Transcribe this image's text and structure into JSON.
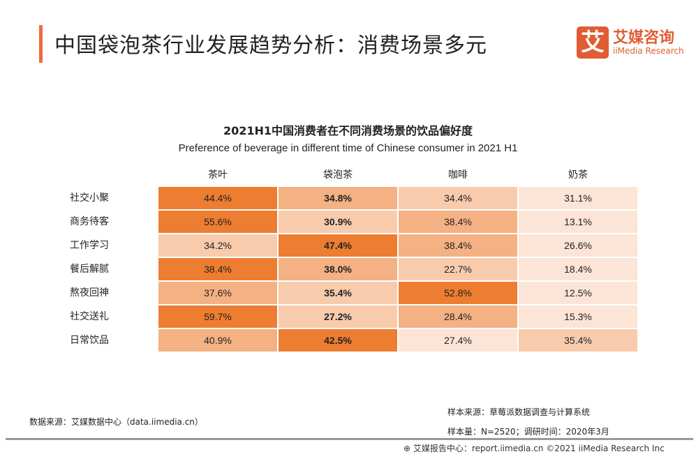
{
  "header": {
    "title": "中国袋泡茶行业发展趋势分析：消费场景多元",
    "logo_mark": "艾",
    "logo_cn": "艾媒咨询",
    "logo_en": "iiMedia Research",
    "accent": "#f26a3a"
  },
  "chart_data": {
    "type": "heatmap",
    "title": "2021H1中国消费者在不同消费场景的饮品偏好度",
    "subtitle": "Preference of beverage in different time of Chinese consumer in 2021 H1",
    "columns": [
      "茶叶",
      "袋泡茶",
      "咖啡",
      "奶茶"
    ],
    "rows": [
      "社交小聚",
      "商务待客",
      "工作学习",
      "餐后解腻",
      "熬夜回神",
      "社交送礼",
      "日常饮品"
    ],
    "unit": "%",
    "values": [
      [
        44.4,
        34.8,
        34.4,
        31.1
      ],
      [
        55.6,
        30.9,
        38.4,
        13.1
      ],
      [
        34.2,
        47.4,
        38.4,
        26.6
      ],
      [
        38.4,
        38.0,
        22.7,
        18.4
      ],
      [
        37.6,
        35.4,
        52.8,
        12.5
      ],
      [
        59.7,
        27.2,
        28.4,
        15.3
      ],
      [
        40.9,
        42.5,
        27.4,
        35.4
      ]
    ],
    "labels": [
      [
        "44.4%",
        "34.8%",
        "34.4%",
        "31.1%"
      ],
      [
        "55.6%",
        "30.9%",
        "38.4%",
        "13.1%"
      ],
      [
        "34.2%",
        "47.4%",
        "38.4%",
        "26.6%"
      ],
      [
        "38.4%",
        "38.0%",
        "22.7%",
        "18.4%"
      ],
      [
        "37.6%",
        "35.4%",
        "52.8%",
        "12.5%"
      ],
      [
        "59.7%",
        "27.2%",
        "28.4%",
        "15.3%"
      ],
      [
        "40.9%",
        "42.5%",
        "27.4%",
        "35.4%"
      ]
    ],
    "shade_levels": [
      [
        3,
        2,
        1,
        0
      ],
      [
        3,
        1,
        2,
        0
      ],
      [
        1,
        3,
        2,
        0
      ],
      [
        3,
        2,
        1,
        0
      ],
      [
        2,
        1,
        3,
        0
      ],
      [
        3,
        1,
        2,
        0
      ],
      [
        2,
        3,
        0,
        1
      ]
    ],
    "bold_column": 1,
    "colors": [
      "#fce4d6",
      "#f8cbad",
      "#f4b183",
      "#ed7d31"
    ]
  },
  "footer": {
    "source": "数据来源：艾媒数据中心（data.iimedia.cn）",
    "sample_source": "样本来源：草莓派数据调查与计算系统",
    "sample_size": "样本量：N=2520；调研时间：2020年3月",
    "copyright": "⊕ 艾媒报告中心：report.iimedia.cn  ©2021  iiMedia Research Inc"
  }
}
